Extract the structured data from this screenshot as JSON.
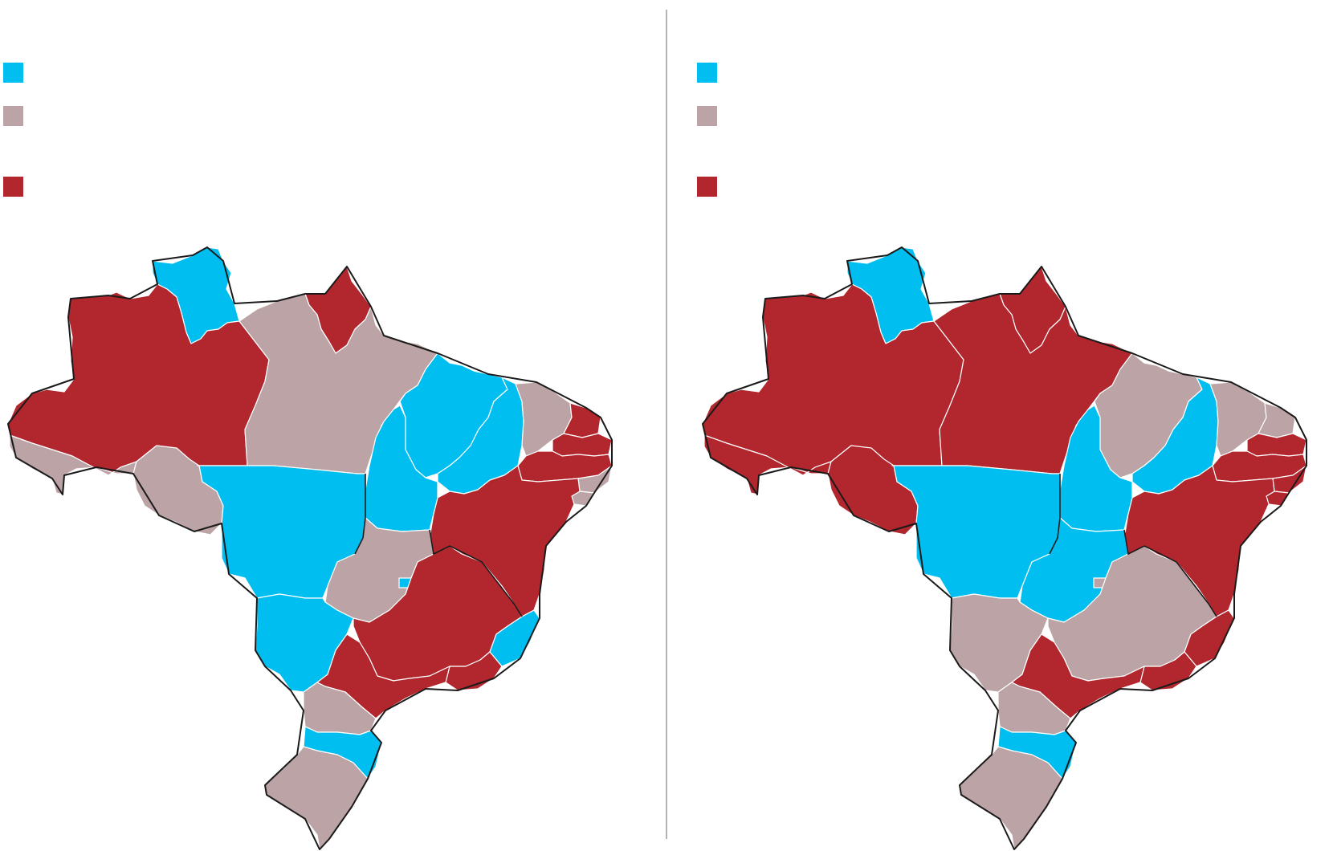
{
  "colors": {
    "blue": "#00bef0",
    "gray": "#bca3a5",
    "red": "#b2262e",
    "border": "#1a1a1a",
    "divider": "#9a9a9a"
  },
  "legend_left": [
    {
      "color": "blue"
    },
    {
      "color": "gray"
    },
    {
      "color": "red"
    }
  ],
  "legend_right": [
    {
      "color": "blue"
    },
    {
      "color": "gray"
    },
    {
      "color": "red"
    }
  ],
  "maps": [
    {
      "name": "left-map",
      "fills": {
        "RR": "blue",
        "AP": "red",
        "AM": "red",
        "PA": "gray",
        "AC": "gray",
        "RO": "gray",
        "MA": "blue",
        "PI": "blue",
        "TO": "blue",
        "MT": "blue",
        "MS": "blue",
        "CE": "gray",
        "RN": "red",
        "PB": "red",
        "PE": "red",
        "AL": "gray",
        "SE": "gray",
        "BA": "red",
        "GO": "gray",
        "DF": "blue",
        "MG": "red",
        "ES": "blue",
        "RJ": "red",
        "SP": "red",
        "PR": "gray",
        "SC": "blue",
        "RS": "gray"
      }
    },
    {
      "name": "right-map",
      "fills": {
        "RR": "blue",
        "AP": "red",
        "AM": "red",
        "PA": "red",
        "AC": "red",
        "RO": "red",
        "MA": "gray",
        "PI": "blue",
        "TO": "blue",
        "MT": "blue",
        "MS": "gray",
        "CE": "gray",
        "RN": "gray",
        "PB": "red",
        "PE": "red",
        "AL": "red",
        "SE": "red",
        "BA": "red",
        "GO": "blue",
        "DF": "gray",
        "MG": "gray",
        "ES": "red",
        "RJ": "red",
        "SP": "red",
        "PR": "gray",
        "SC": "blue",
        "RS": "gray"
      }
    }
  ]
}
